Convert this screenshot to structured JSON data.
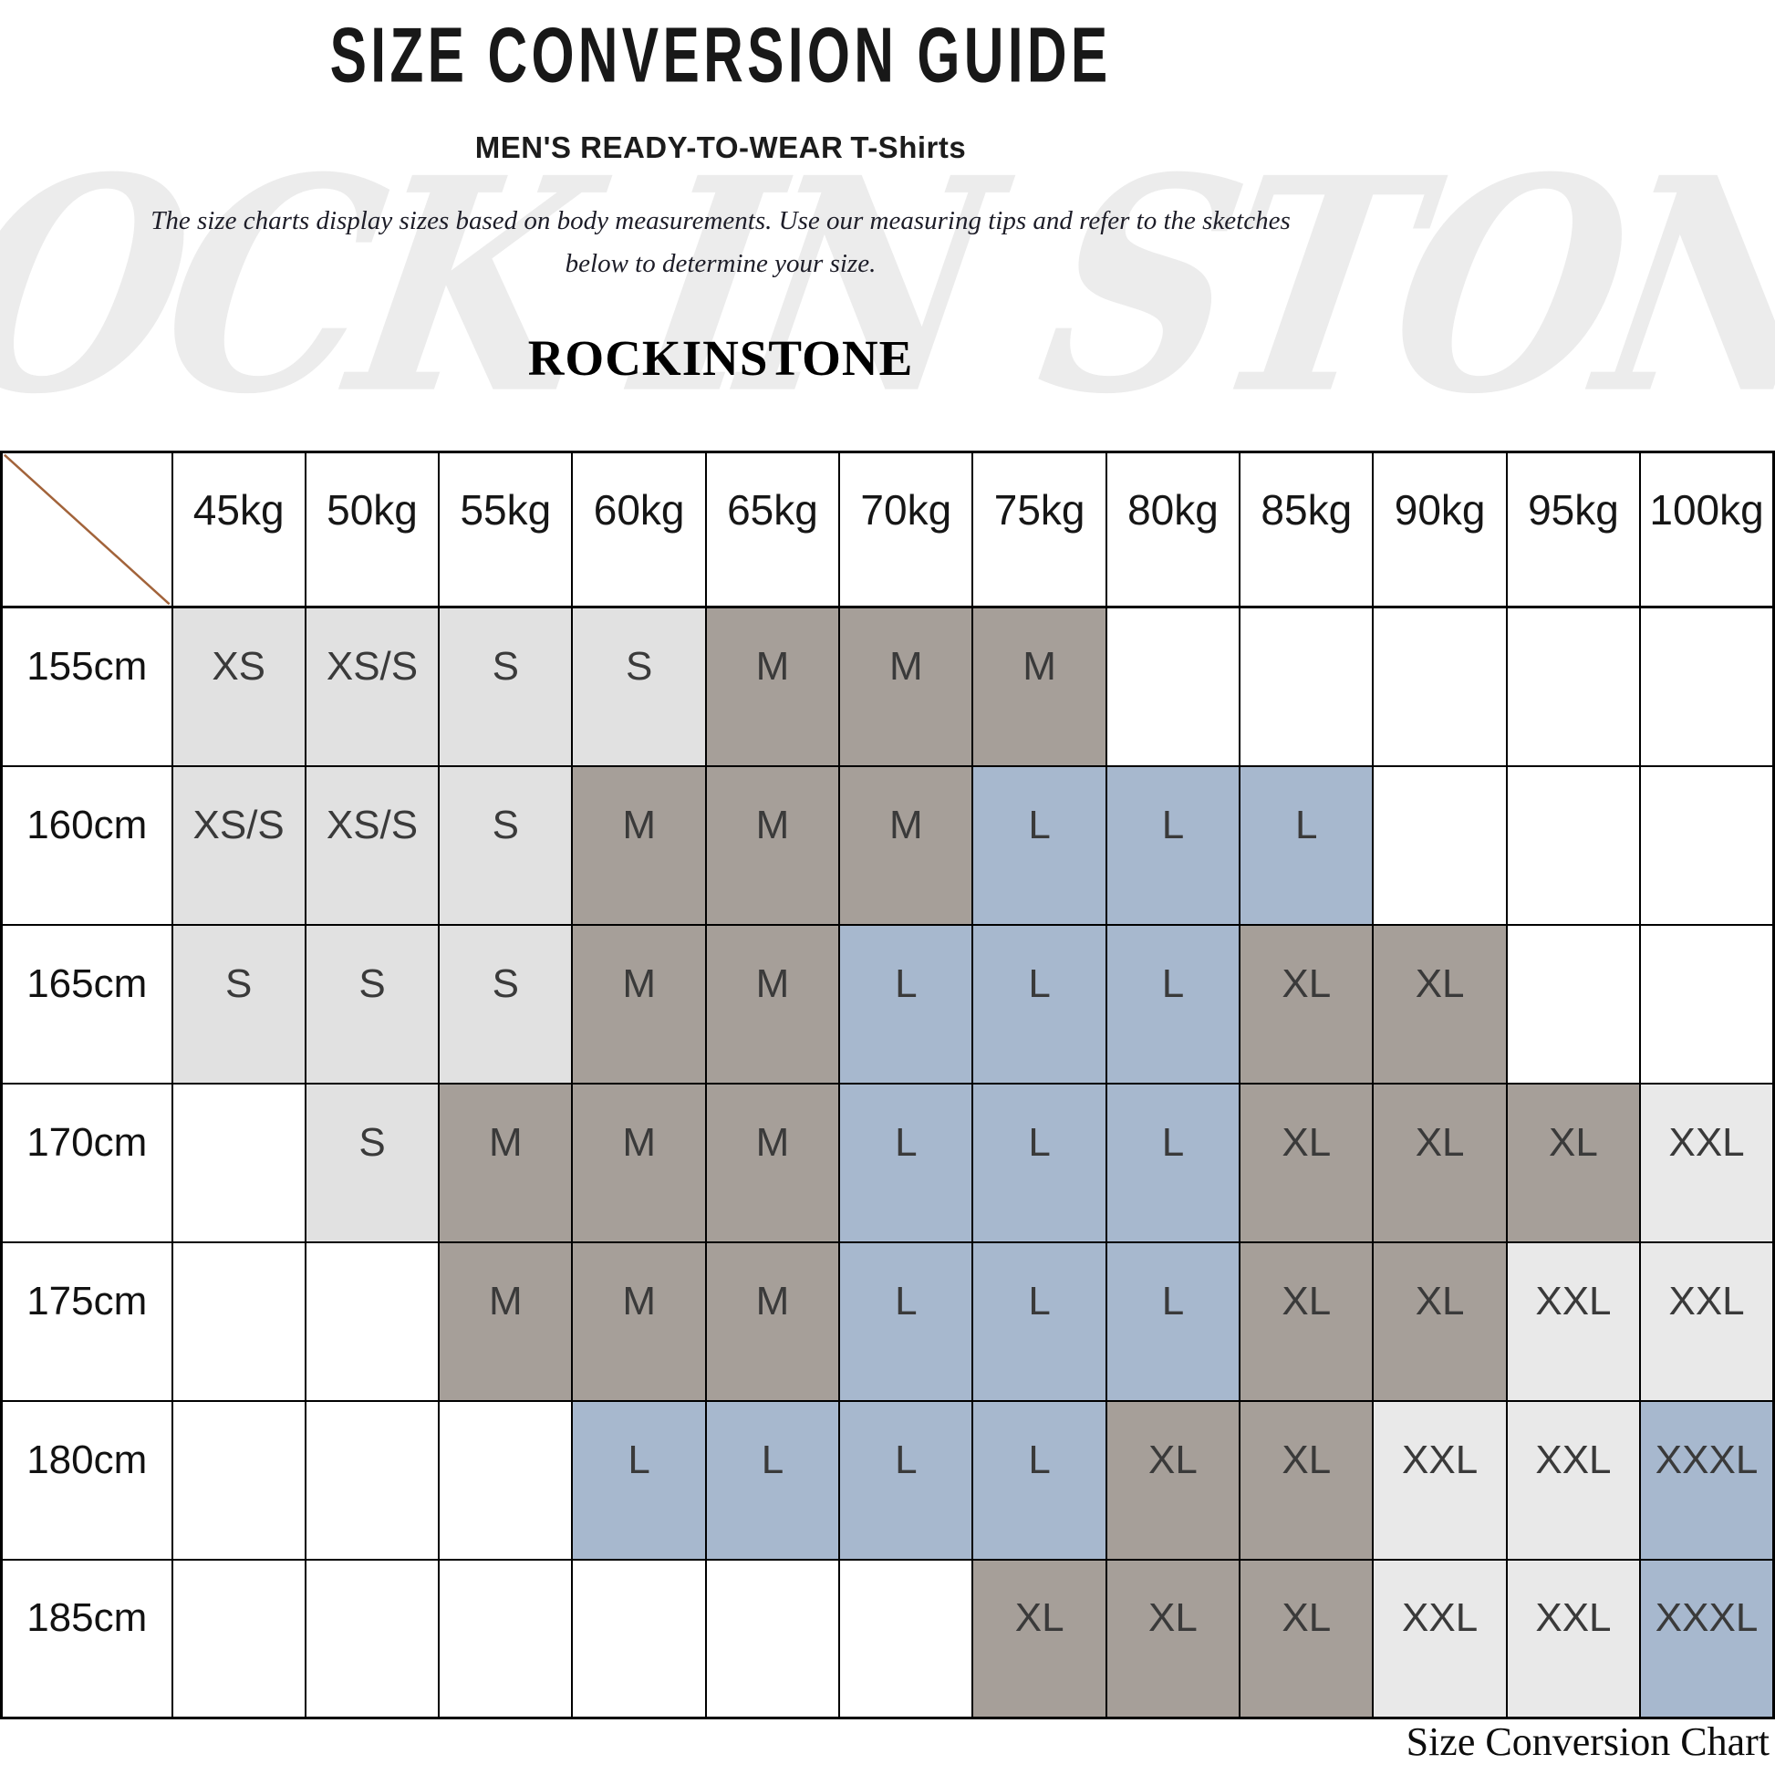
{
  "page": {
    "title": "SIZE CONVERSION GUIDE",
    "subtitle": "MEN'S READY-TO-WEAR",
    "subtitle_product": "T-Shirts",
    "description_line1": "The size charts display sizes based on body measurements. Use our measuring tips and refer to the sketches",
    "description_line2": "below to determine your size.",
    "brand": "ROCKINSTONE",
    "watermark": "ROCK IN STONE",
    "caption": "Size Conversion Chart"
  },
  "chart_data": {
    "type": "table",
    "title": "SIZE CONVERSION GUIDE",
    "corner_label": "",
    "x_axis_meaning": "body weight",
    "y_axis_meaning": "body height",
    "columns": [
      "45kg",
      "50kg",
      "55kg",
      "60kg",
      "65kg",
      "70kg",
      "75kg",
      "80kg",
      "85kg",
      "90kg",
      "95kg",
      "100kg"
    ],
    "rows": [
      {
        "height": "155cm",
        "cells": [
          "XS",
          "XS/S",
          "S",
          "S",
          "M",
          "M",
          "M",
          "",
          "",
          "",
          "",
          ""
        ]
      },
      {
        "height": "160cm",
        "cells": [
          "XS/S",
          "XS/S",
          "S",
          "M",
          "M",
          "M",
          "L",
          "L",
          "L",
          "",
          "",
          ""
        ]
      },
      {
        "height": "165cm",
        "cells": [
          "S",
          "S",
          "S",
          "M",
          "M",
          "L",
          "L",
          "L",
          "XL",
          "XL",
          "",
          ""
        ]
      },
      {
        "height": "170cm",
        "cells": [
          "",
          "S",
          "M",
          "M",
          "M",
          "L",
          "L",
          "L",
          "XL",
          "XL",
          "XL",
          "XXL"
        ]
      },
      {
        "height": "175cm",
        "cells": [
          "",
          "",
          "M",
          "M",
          "M",
          "L",
          "L",
          "L",
          "XL",
          "XL",
          "XXL",
          "XXL"
        ]
      },
      {
        "height": "180cm",
        "cells": [
          "",
          "",
          "",
          "L",
          "L",
          "L",
          "L",
          "XL",
          "XL",
          "XXL",
          "XXL",
          "XXXL"
        ]
      },
      {
        "height": "185cm",
        "cells": [
          "",
          "",
          "",
          "",
          "",
          "",
          "XL",
          "XL",
          "XL",
          "XXL",
          "XXL",
          "XXXL"
        ]
      }
    ]
  },
  "colors": {
    "cell_fill": {
      "XS": "#e1e1e1",
      "XS/S": "#e1e1e1",
      "S": "#e1e1e1",
      "M": "#a69f99",
      "L": "#a7b8ce",
      "XL": "#a69f99",
      "XXL": "#e9e9e9",
      "XXXL": "#a7b8ce"
    },
    "diagonal_line": "#a2633a",
    "table_border": "#000000",
    "watermark": "#ececec"
  }
}
